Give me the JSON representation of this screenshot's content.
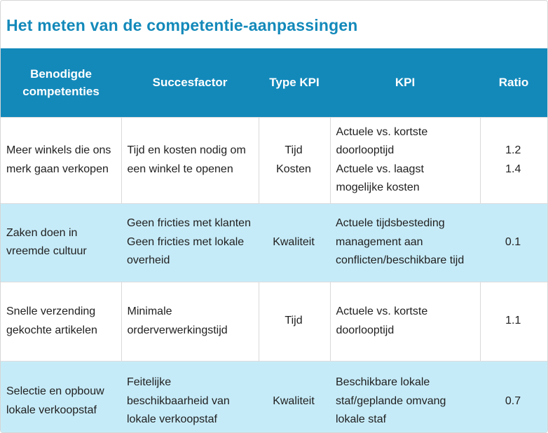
{
  "title": "Het meten van de competentie-aanpassingen",
  "colors": {
    "accent_blue": "#1389ba",
    "row_highlight_blue": "#c6ebf8",
    "grid_line": "#d9d9d9",
    "text": "#212121"
  },
  "table": {
    "headers": [
      "Benodigde competenties",
      "Succesfactor",
      "Type KPI",
      "KPI",
      "Ratio"
    ],
    "rows": [
      {
        "competentie": [
          "Meer winkels die ons merk gaan verkopen"
        ],
        "succesfactor": [
          "Tijd en kosten nodig om een winkel te openen"
        ],
        "type_kpi": [
          "Tijd",
          "Kosten"
        ],
        "kpi": [
          "Actuele vs. kortste doorlooptijd",
          "Actuele vs. laagst mogelijke kosten"
        ],
        "ratio": [
          "1.2",
          "1.4"
        ]
      },
      {
        "competentie": [
          "Zaken doen in vreemde cultuur"
        ],
        "succesfactor": [
          "Geen fricties met klanten",
          "Geen fricties met lokale overheid"
        ],
        "type_kpi": [
          "Kwaliteit"
        ],
        "kpi": [
          "Actuele tijdsbesteding management aan conflicten/beschikbare tijd"
        ],
        "ratio": [
          "0.1"
        ]
      },
      {
        "competentie": [
          "Snelle verzending gekochte artikelen"
        ],
        "succesfactor": [
          "Minimale orderverwerkingstijd"
        ],
        "type_kpi": [
          "Tijd"
        ],
        "kpi": [
          "Actuele vs. kortste doorlooptijd"
        ],
        "ratio": [
          "1.1"
        ]
      },
      {
        "competentie": [
          "Selectie en opbouw lokale verkoopstaf"
        ],
        "succesfactor": [
          "Feitelijke beschikbaarheid van lokale verkoopstaf"
        ],
        "type_kpi": [
          "Kwaliteit"
        ],
        "kpi": [
          "Beschikbare lokale staf/geplande omvang lokale staf"
        ],
        "ratio": [
          "0.7"
        ]
      }
    ]
  }
}
